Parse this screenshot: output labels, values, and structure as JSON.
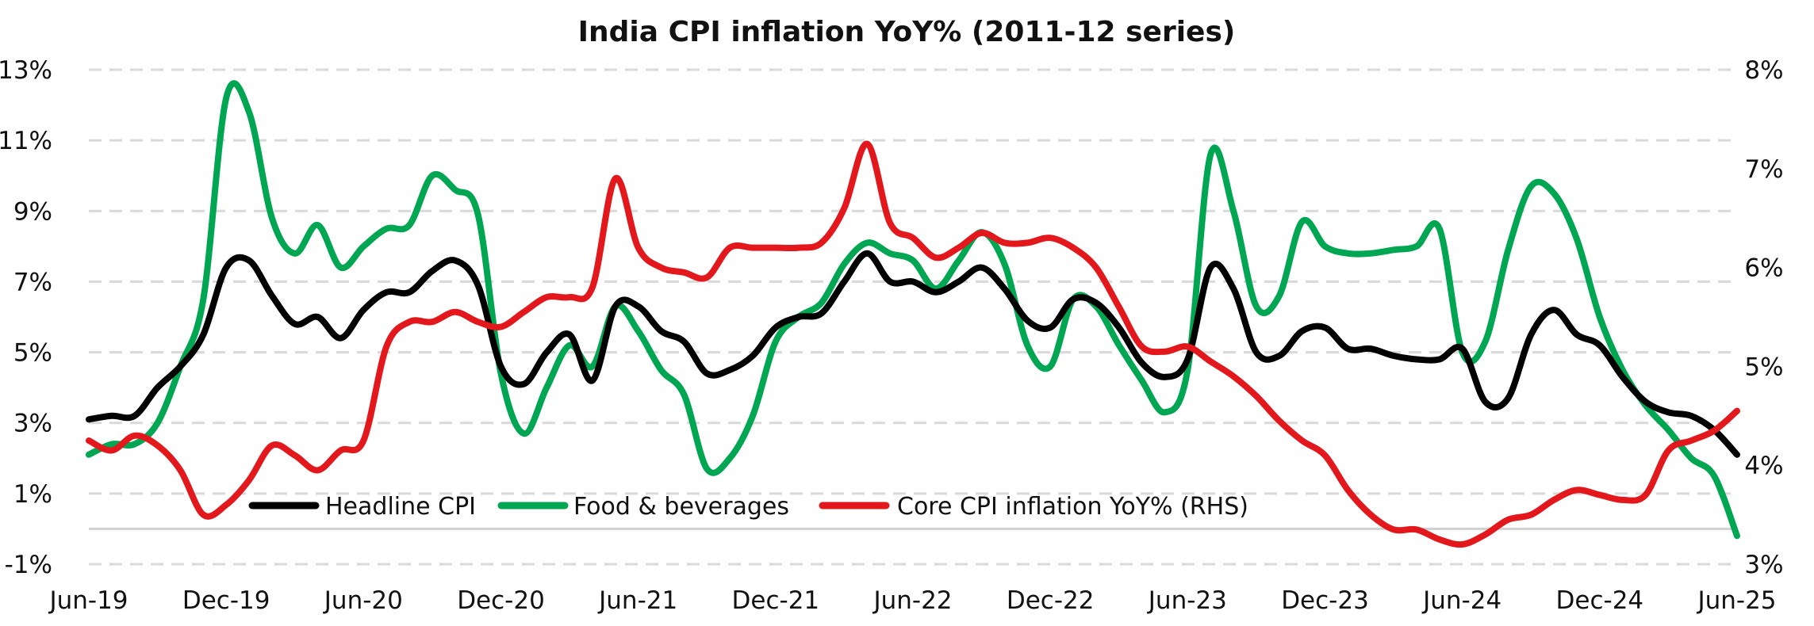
{
  "chart_data": {
    "type": "line",
    "title": "India CPI inflation YoY% (2011-12 series)",
    "x": [
      "Jun-19",
      "Jul-19",
      "Aug-19",
      "Sep-19",
      "Oct-19",
      "Nov-19",
      "Dec-19",
      "Jan-20",
      "Feb-20",
      "Mar-20",
      "Apr-20",
      "May-20",
      "Jun-20",
      "Jul-20",
      "Aug-20",
      "Sep-20",
      "Oct-20",
      "Nov-20",
      "Dec-20",
      "Jan-21",
      "Feb-21",
      "Mar-21",
      "Apr-21",
      "May-21",
      "Jun-21",
      "Jul-21",
      "Aug-21",
      "Sep-21",
      "Oct-21",
      "Nov-21",
      "Dec-21",
      "Jan-22",
      "Feb-22",
      "Mar-22",
      "Apr-22",
      "May-22",
      "Jun-22",
      "Jul-22",
      "Aug-22",
      "Sep-22",
      "Oct-22",
      "Nov-22",
      "Dec-22",
      "Jan-23",
      "Feb-23",
      "Mar-23",
      "Apr-23",
      "May-23",
      "Jun-23",
      "Jul-23",
      "Aug-23",
      "Sep-23",
      "Oct-23",
      "Nov-23",
      "Dec-23",
      "Jan-24",
      "Feb-24",
      "Mar-24",
      "Apr-24",
      "May-24",
      "Jun-24",
      "Jul-24",
      "Aug-24",
      "Sep-24",
      "Oct-24",
      "Nov-24",
      "Dec-24",
      "Jan-25",
      "Feb-25",
      "Mar-25",
      "Apr-25",
      "May-25",
      "Jun-25"
    ],
    "x_ticks": [
      "Jun-19",
      "Dec-19",
      "Jun-20",
      "Dec-20",
      "Jun-21",
      "Dec-21",
      "Jun-22",
      "Dec-22",
      "Jun-23",
      "Dec-23",
      "Jun-24",
      "Dec-24",
      "Jun-25"
    ],
    "y_left": {
      "ticks": [
        "13%",
        "11%",
        "9%",
        "7%",
        "5%",
        "3%",
        "1%",
        "-1%"
      ],
      "range": [
        -1,
        13
      ]
    },
    "y_right": {
      "ticks": [
        "8%",
        "7%",
        "6%",
        "5%",
        "4%",
        "3%"
      ],
      "range": [
        3,
        8
      ]
    },
    "series": [
      {
        "name": "Headline CPI",
        "axis": "left",
        "color": "#000000",
        "values": [
          3.1,
          3.2,
          3.2,
          4.0,
          4.6,
          5.5,
          7.4,
          7.6,
          6.6,
          5.8,
          6.0,
          5.4,
          6.2,
          6.7,
          6.7,
          7.3,
          7.6,
          6.9,
          4.6,
          4.1,
          5.0,
          5.5,
          4.2,
          6.3,
          6.3,
          5.6,
          5.3,
          4.4,
          4.5,
          4.9,
          5.7,
          6.0,
          6.1,
          7.0,
          7.8,
          7.0,
          7.0,
          6.7,
          7.0,
          7.4,
          6.8,
          5.9,
          5.7,
          6.5,
          6.4,
          5.7,
          4.7,
          4.3,
          4.8,
          7.4,
          6.8,
          5.0,
          4.9,
          5.6,
          5.7,
          5.1,
          5.1,
          4.9,
          4.8,
          4.8,
          5.1,
          3.6,
          3.7,
          5.5,
          6.2,
          5.5,
          5.2,
          4.3,
          3.6,
          3.3,
          3.2,
          2.8,
          2.1
        ]
      },
      {
        "name": "Food & beverages",
        "axis": "left",
        "color": "#00a651",
        "values": [
          2.1,
          2.4,
          2.4,
          3.0,
          4.6,
          6.5,
          12.2,
          11.8,
          8.8,
          7.8,
          8.6,
          7.4,
          8.0,
          8.5,
          8.6,
          10.0,
          9.6,
          8.9,
          4.4,
          2.7,
          4.0,
          5.2,
          4.6,
          6.3,
          5.6,
          4.5,
          3.8,
          1.7,
          2.0,
          3.2,
          5.3,
          6.0,
          6.4,
          7.5,
          8.1,
          7.8,
          7.6,
          6.8,
          7.6,
          8.4,
          7.5,
          5.2,
          4.6,
          6.5,
          6.3,
          5.2,
          4.2,
          3.3,
          4.5,
          10.6,
          9.0,
          6.3,
          6.6,
          8.7,
          8.0,
          7.8,
          7.8,
          7.9,
          8.0,
          8.5,
          5.0,
          5.3,
          7.9,
          9.7,
          9.5,
          8.2,
          6.0,
          4.5,
          3.5,
          2.8,
          2.0,
          1.5,
          -0.2
        ]
      },
      {
        "name": "Core CPI inflation YoY% (RHS)",
        "axis": "right",
        "color": "#e3181d",
        "values": [
          4.25,
          4.15,
          4.3,
          4.2,
          3.95,
          3.5,
          3.6,
          3.85,
          4.2,
          4.1,
          3.95,
          4.15,
          4.25,
          5.2,
          5.45,
          5.45,
          5.55,
          5.45,
          5.4,
          5.55,
          5.7,
          5.7,
          5.8,
          6.9,
          6.2,
          6.0,
          5.95,
          5.9,
          6.2,
          6.2,
          6.2,
          6.2,
          6.25,
          6.6,
          7.25,
          6.45,
          6.3,
          6.1,
          6.2,
          6.35,
          6.25,
          6.25,
          6.3,
          6.2,
          6.0,
          5.6,
          5.2,
          5.15,
          5.2,
          5.05,
          4.9,
          4.7,
          4.45,
          4.25,
          4.1,
          3.75,
          3.5,
          3.35,
          3.35,
          3.25,
          3.2,
          3.3,
          3.45,
          3.5,
          3.65,
          3.75,
          3.7,
          3.65,
          3.7,
          4.15,
          4.25,
          4.35,
          4.55
        ]
      }
    ],
    "legend_position": "bottom-left-inside"
  }
}
